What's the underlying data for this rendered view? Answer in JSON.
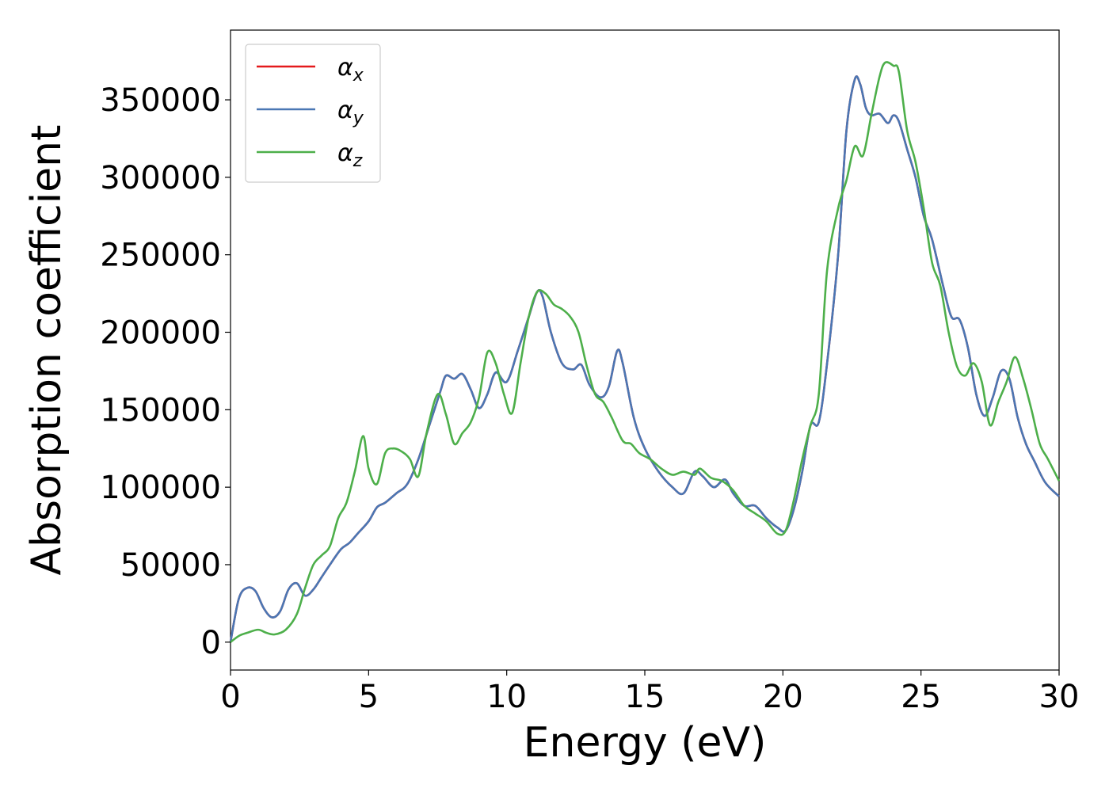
{
  "chart_data": {
    "type": "line",
    "xlabel": "Energy (eV)",
    "ylabel": "Absorption coefficient",
    "xlim": [
      0,
      30
    ],
    "ylim": [
      -18000,
      395000
    ],
    "x_ticks": [
      0,
      5,
      10,
      15,
      20,
      25,
      30
    ],
    "y_ticks": [
      0,
      50000,
      100000,
      150000,
      200000,
      250000,
      300000,
      350000
    ],
    "grid": false,
    "legend_position": "top-left",
    "series": [
      {
        "name": "x",
        "color": "#e41a1c",
        "x": [
          0,
          0.3,
          0.6,
          0.9,
          1.2,
          1.5,
          1.8,
          2.1,
          2.4,
          2.7,
          3.0,
          3.3,
          3.6,
          4.0,
          4.3,
          4.6,
          5.0,
          5.3,
          5.6,
          6.0,
          6.4,
          6.8,
          7.2,
          7.6,
          7.8,
          8.1,
          8.4,
          8.7,
          9.0,
          9.3,
          9.6,
          10.0,
          10.4,
          10.8,
          11.1,
          11.3,
          11.6,
          12.0,
          12.4,
          12.7,
          13.0,
          13.4,
          13.7,
          14.0,
          14.2,
          14.6,
          15.0,
          15.5,
          16.0,
          16.4,
          16.8,
          17.1,
          17.5,
          17.9,
          18.2,
          18.6,
          19.0,
          19.4,
          19.8,
          20.1,
          20.4,
          20.7,
          21.0,
          21.3,
          21.6,
          22.0,
          22.3,
          22.6,
          22.8,
          23.0,
          23.2,
          23.5,
          23.8,
          24.0,
          24.2,
          24.5,
          24.8,
          25.1,
          25.4,
          25.8,
          26.1,
          26.4,
          26.7,
          27.0,
          27.3,
          27.6,
          27.9,
          28.2,
          28.5,
          28.8,
          29.1,
          29.5,
          30.0
        ],
        "y": [
          0,
          28000,
          35000,
          33000,
          22000,
          16000,
          20000,
          34000,
          38000,
          30000,
          34000,
          42000,
          50000,
          60000,
          64000,
          70000,
          78000,
          87000,
          90000,
          96000,
          102000,
          118000,
          140000,
          162000,
          172000,
          170000,
          173000,
          163000,
          151000,
          160000,
          174000,
          168000,
          188000,
          210000,
          226000,
          223000,
          200000,
          180000,
          176000,
          179000,
          166000,
          158000,
          165000,
          188000,
          180000,
          145000,
          125000,
          110000,
          100000,
          96000,
          110000,
          107000,
          100000,
          105000,
          96000,
          88000,
          88000,
          80000,
          74000,
          72000,
          86000,
          110000,
          140000,
          142000,
          180000,
          250000,
          330000,
          363000,
          360000,
          345000,
          340000,
          341000,
          335000,
          340000,
          336000,
          318000,
          300000,
          275000,
          260000,
          230000,
          210000,
          208000,
          190000,
          160000,
          146000,
          158000,
          175000,
          170000,
          145000,
          128000,
          117000,
          103000,
          94000
        ]
      },
      {
        "name": "y",
        "color": "#4a77b4",
        "x": [
          0,
          0.3,
          0.6,
          0.9,
          1.2,
          1.5,
          1.8,
          2.1,
          2.4,
          2.7,
          3.0,
          3.3,
          3.6,
          4.0,
          4.3,
          4.6,
          5.0,
          5.3,
          5.6,
          6.0,
          6.4,
          6.8,
          7.2,
          7.6,
          7.8,
          8.1,
          8.4,
          8.7,
          9.0,
          9.3,
          9.6,
          10.0,
          10.4,
          10.8,
          11.1,
          11.3,
          11.6,
          12.0,
          12.4,
          12.7,
          13.0,
          13.4,
          13.7,
          14.0,
          14.2,
          14.6,
          15.0,
          15.5,
          16.0,
          16.4,
          16.8,
          17.1,
          17.5,
          17.9,
          18.2,
          18.6,
          19.0,
          19.4,
          19.8,
          20.1,
          20.4,
          20.7,
          21.0,
          21.3,
          21.6,
          22.0,
          22.3,
          22.6,
          22.8,
          23.0,
          23.2,
          23.5,
          23.8,
          24.0,
          24.2,
          24.5,
          24.8,
          25.1,
          25.4,
          25.8,
          26.1,
          26.4,
          26.7,
          27.0,
          27.3,
          27.6,
          27.9,
          28.2,
          28.5,
          28.8,
          29.1,
          29.5,
          30.0
        ],
        "y": [
          0,
          28000,
          35000,
          33000,
          22000,
          16000,
          20000,
          34000,
          38000,
          30000,
          34000,
          42000,
          50000,
          60000,
          64000,
          70000,
          78000,
          87000,
          90000,
          96000,
          102000,
          118000,
          140000,
          162000,
          172000,
          170000,
          173000,
          163000,
          151000,
          160000,
          174000,
          168000,
          188000,
          210000,
          226000,
          223000,
          200000,
          180000,
          176000,
          179000,
          166000,
          158000,
          165000,
          188000,
          180000,
          145000,
          125000,
          110000,
          100000,
          96000,
          110000,
          107000,
          100000,
          105000,
          96000,
          88000,
          88000,
          80000,
          74000,
          72000,
          86000,
          110000,
          140000,
          142000,
          180000,
          250000,
          330000,
          363000,
          360000,
          345000,
          340000,
          341000,
          335000,
          340000,
          336000,
          318000,
          300000,
          275000,
          260000,
          230000,
          210000,
          208000,
          190000,
          160000,
          146000,
          158000,
          175000,
          170000,
          145000,
          128000,
          117000,
          103000,
          94000
        ]
      },
      {
        "name": "z",
        "color": "#4daf4a",
        "x": [
          0,
          0.3,
          0.6,
          1.0,
          1.3,
          1.6,
          2.0,
          2.4,
          2.7,
          3.0,
          3.3,
          3.6,
          3.9,
          4.2,
          4.5,
          4.8,
          5.0,
          5.3,
          5.6,
          5.9,
          6.2,
          6.5,
          6.8,
          7.1,
          7.5,
          7.8,
          8.1,
          8.4,
          8.7,
          9.0,
          9.3,
          9.6,
          9.9,
          10.2,
          10.5,
          10.8,
          11.1,
          11.4,
          11.7,
          12.0,
          12.3,
          12.6,
          12.9,
          13.2,
          13.5,
          13.8,
          14.2,
          14.5,
          14.8,
          15.2,
          15.6,
          16.0,
          16.4,
          16.8,
          17.0,
          17.4,
          17.8,
          18.2,
          18.6,
          19.0,
          19.4,
          19.8,
          20.1,
          20.4,
          20.7,
          21.0,
          21.3,
          21.6,
          22.0,
          22.3,
          22.6,
          22.9,
          23.2,
          23.5,
          23.7,
          24.0,
          24.2,
          24.5,
          24.8,
          25.1,
          25.4,
          25.7,
          26.0,
          26.3,
          26.6,
          26.9,
          27.2,
          27.5,
          27.8,
          28.1,
          28.4,
          28.7,
          29.0,
          29.3,
          29.6,
          30.0
        ],
        "y": [
          0,
          4000,
          6000,
          8000,
          6000,
          5000,
          8000,
          18000,
          35000,
          50000,
          56000,
          62000,
          80000,
          90000,
          110000,
          133000,
          112000,
          102000,
          122000,
          125000,
          123000,
          118000,
          107000,
          135000,
          160000,
          147000,
          128000,
          135000,
          142000,
          158000,
          187000,
          180000,
          160000,
          148000,
          180000,
          210000,
          226000,
          225000,
          218000,
          215000,
          210000,
          200000,
          178000,
          160000,
          155000,
          145000,
          130000,
          128000,
          122000,
          118000,
          112000,
          108000,
          110000,
          108000,
          112000,
          106000,
          104000,
          98000,
          88000,
          83000,
          78000,
          70000,
          72000,
          92000,
          118000,
          140000,
          160000,
          240000,
          280000,
          298000,
          320000,
          314000,
          340000,
          365000,
          374000,
          372000,
          368000,
          330000,
          310000,
          280000,
          245000,
          230000,
          200000,
          178000,
          172000,
          180000,
          168000,
          140000,
          155000,
          168000,
          184000,
          170000,
          150000,
          128000,
          118000,
          104000
        ]
      }
    ]
  }
}
